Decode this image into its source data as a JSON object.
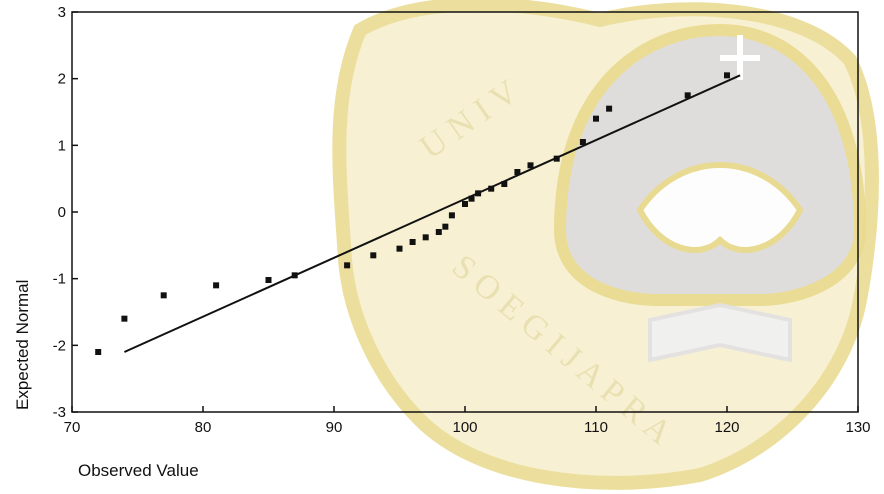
{
  "colors": {
    "watermark": "#F2E6A8",
    "watermark_dark": "#D9C978",
    "ink": "#111111",
    "background": "#FFFFFF"
  },
  "watermark_text": "UNIVERSITAS KATOLIK SOEGIJAPRANATA",
  "chart_data": {
    "type": "scatter",
    "xlabel": "Observed Value",
    "ylabel": "Expected Normal",
    "xlim": [
      70,
      130
    ],
    "ylim": [
      -3,
      3
    ],
    "xticks": [
      70,
      80,
      90,
      100,
      110,
      120,
      130
    ],
    "yticks": [
      -3,
      -2,
      -1,
      0,
      1,
      2,
      3
    ],
    "grid": false,
    "series": [
      {
        "type": "scatter",
        "points": [
          {
            "x": 72,
            "y": -2.1
          },
          {
            "x": 74,
            "y": -1.6
          },
          {
            "x": 77,
            "y": -1.25
          },
          {
            "x": 81,
            "y": -1.1
          },
          {
            "x": 85,
            "y": -1.02
          },
          {
            "x": 87,
            "y": -0.95
          },
          {
            "x": 91,
            "y": -0.8
          },
          {
            "x": 93,
            "y": -0.65
          },
          {
            "x": 95,
            "y": -0.55
          },
          {
            "x": 96,
            "y": -0.45
          },
          {
            "x": 97,
            "y": -0.38
          },
          {
            "x": 98,
            "y": -0.3
          },
          {
            "x": 98.5,
            "y": -0.22
          },
          {
            "x": 99,
            "y": -0.05
          },
          {
            "x": 100,
            "y": 0.12
          },
          {
            "x": 100.5,
            "y": 0.2
          },
          {
            "x": 101,
            "y": 0.28
          },
          {
            "x": 102,
            "y": 0.35
          },
          {
            "x": 103,
            "y": 0.42
          },
          {
            "x": 104,
            "y": 0.6
          },
          {
            "x": 105,
            "y": 0.7
          },
          {
            "x": 107,
            "y": 0.8
          },
          {
            "x": 109,
            "y": 1.05
          },
          {
            "x": 110,
            "y": 1.4
          },
          {
            "x": 111,
            "y": 1.55
          },
          {
            "x": 117,
            "y": 1.75
          },
          {
            "x": 120,
            "y": 2.05
          }
        ]
      },
      {
        "type": "line",
        "points": [
          {
            "x": 74,
            "y": -2.1
          },
          {
            "x": 121,
            "y": 2.05
          }
        ]
      }
    ]
  }
}
